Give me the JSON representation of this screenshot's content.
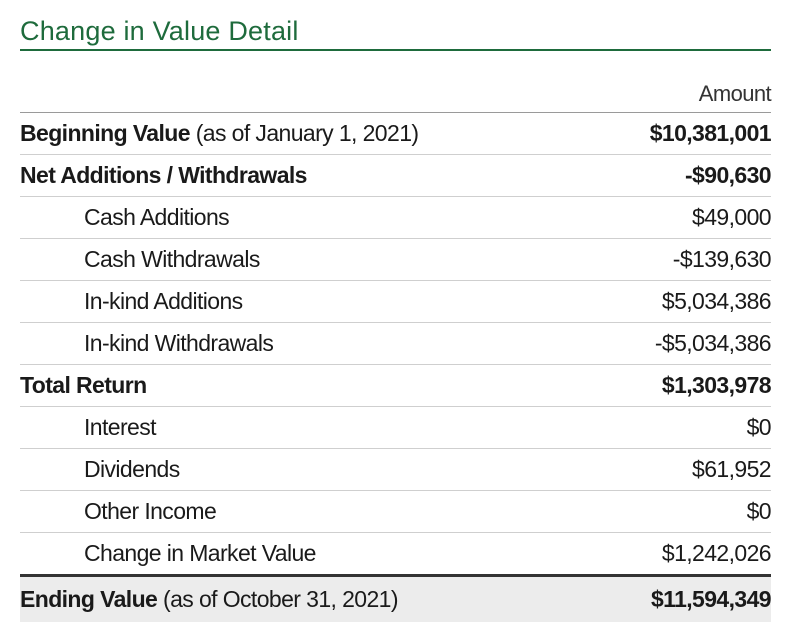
{
  "title": "Change in Value Detail",
  "column_header": "Amount",
  "rows": [
    {
      "label": "Beginning Value",
      "note": "(as of January 1, 2021)",
      "value": "$10,381,001"
    },
    {
      "label": "Net Additions / Withdrawals",
      "value": "-$90,630"
    },
    {
      "label": "Cash Additions",
      "value": "$49,000"
    },
    {
      "label": "Cash Withdrawals",
      "value": "-$139,630"
    },
    {
      "label": "In-kind Additions",
      "value": "$5,034,386"
    },
    {
      "label": "In-kind Withdrawals",
      "value": "-$5,034,386"
    },
    {
      "label": "Total Return",
      "value": "$1,303,978"
    },
    {
      "label": "Interest",
      "value": "$0"
    },
    {
      "label": "Dividends",
      "value": "$61,952"
    },
    {
      "label": "Other Income",
      "value": "$0"
    },
    {
      "label": "Change in Market Value",
      "value": "$1,242,026"
    },
    {
      "label": "Ending Value",
      "note": "(as of October 31, 2021)",
      "value": "$11,594,349"
    }
  ]
}
